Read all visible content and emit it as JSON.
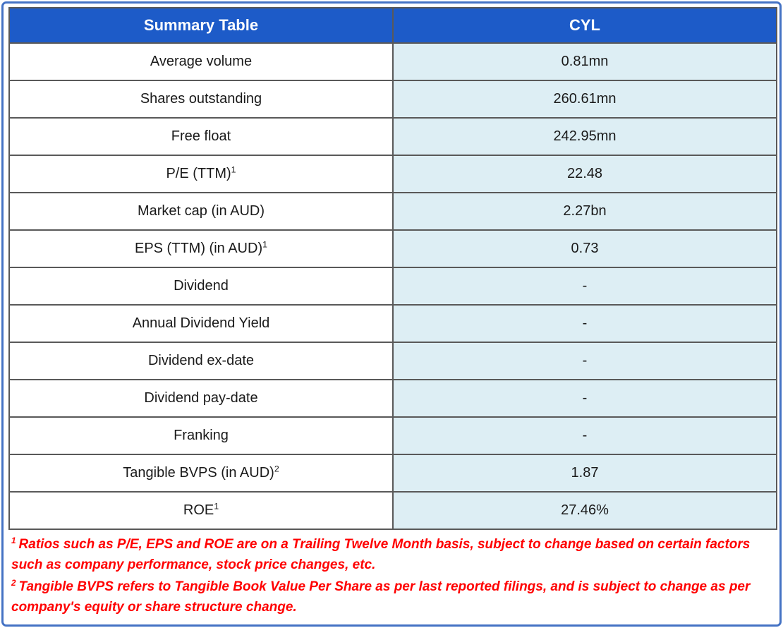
{
  "colors": {
    "header_blue": "#1d5bc8",
    "value_cell_blue": "#ddeef4",
    "cell_border_gray": "#595959",
    "outer_frame_blue": "#4472c4",
    "footnote_red": "#ff0000"
  },
  "table": {
    "header": {
      "label_col": "Summary Table",
      "value_col": "CYL"
    },
    "rows": [
      {
        "label": "Average volume",
        "sup": "",
        "value": "0.81mn"
      },
      {
        "label": "Shares outstanding",
        "sup": "",
        "value": "260.61mn"
      },
      {
        "label": "Free float",
        "sup": "",
        "value": "242.95mn"
      },
      {
        "label": "P/E (TTM)",
        "sup": "1",
        "value": "22.48"
      },
      {
        "label": "Market cap (in AUD)",
        "sup": "",
        "value": "2.27bn"
      },
      {
        "label": "EPS (TTM) (in AUD)",
        "sup": "1",
        "value": "0.73"
      },
      {
        "label": "Dividend",
        "sup": "",
        "value": "-"
      },
      {
        "label": "Annual Dividend Yield",
        "sup": "",
        "value": "-"
      },
      {
        "label": "Dividend ex-date",
        "sup": "",
        "value": "-"
      },
      {
        "label": "Dividend pay-date",
        "sup": "",
        "value": "-"
      },
      {
        "label": "Franking",
        "sup": "",
        "value": "-"
      },
      {
        "label": "Tangible BVPS (in AUD)",
        "sup": "2",
        "value": "1.87"
      },
      {
        "label": "ROE",
        "sup": "1",
        "value": "27.46%"
      }
    ]
  },
  "footnotes": [
    {
      "sup": "1",
      "text": "Ratios such as P/E, EPS and ROE are on a Trailing Twelve Month basis, subject to change based on certain factors such as company performance, stock price changes, etc."
    },
    {
      "sup": "2",
      "text": "Tangible BVPS refers to Tangible Book Value Per Share as per last reported filings, and is subject to change as per company's equity or share structure change."
    }
  ]
}
